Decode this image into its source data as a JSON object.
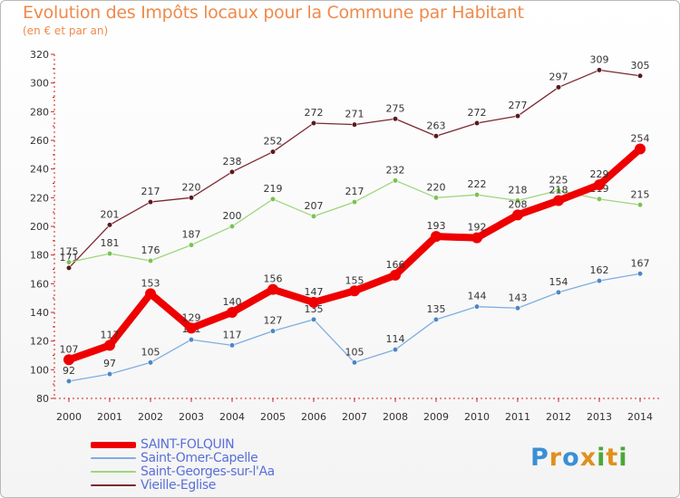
{
  "header": {
    "title": "Evolution des Impôts locaux pour la Commune par Habitant",
    "subtitle": "(en € et par an)"
  },
  "brand": {
    "logo_text": "Proxiti"
  },
  "chart_data": {
    "type": "line",
    "title": "Evolution des Impôts locaux pour la Commune par Habitant",
    "subtitle": "(en € et par an)",
    "xlabel": "",
    "ylabel": "",
    "ylim": [
      80,
      320
    ],
    "y_ticks": [
      80,
      100,
      120,
      140,
      160,
      180,
      200,
      220,
      240,
      260,
      280,
      300,
      320
    ],
    "grid": false,
    "legend_position": "bottom-left",
    "categories": [
      "2000",
      "2001",
      "2002",
      "2003",
      "2004",
      "2005",
      "2006",
      "2007",
      "2008",
      "2009",
      "2010",
      "2011",
      "2012",
      "2013",
      "2014"
    ],
    "series": [
      {
        "name": "Vieille-Eglise",
        "color": "#7b2a33",
        "marker": "#5a1a1a",
        "values": [
          171,
          201,
          217,
          220,
          238,
          252,
          272,
          271,
          275,
          263,
          272,
          277,
          297,
          309,
          305
        ]
      },
      {
        "name": "Saint-Georges-sur-l'Aa",
        "color": "#9ed67c",
        "marker": "#7cc252",
        "values": [
          175,
          181,
          176,
          187,
          200,
          219,
          207,
          217,
          232,
          220,
          222,
          218,
          225,
          219,
          215
        ]
      },
      {
        "name": "Saint-Omer-Capelle",
        "color": "#7faee0",
        "marker": "#4d86c4",
        "values": [
          92,
          97,
          105,
          121,
          117,
          127,
          135,
          105,
          114,
          135,
          144,
          143,
          154,
          162,
          167
        ]
      },
      {
        "name": "SAINT-FOLQUIN",
        "color": "#ee0000",
        "marker": "#ee0000",
        "values": [
          107,
          117,
          153,
          129,
          140,
          156,
          147,
          155,
          166,
          193,
          192,
          208,
          218,
          229,
          254
        ]
      }
    ]
  },
  "legend": {
    "items": [
      {
        "label": "SAINT-FOLQUIN",
        "color": "#ee0000"
      },
      {
        "label": "Saint-Omer-Capelle",
        "color": "#7faee0"
      },
      {
        "label": "Saint-Georges-sur-l'Aa",
        "color": "#9ed67c"
      },
      {
        "label": "Vieille-Eglise",
        "color": "#7b2a33"
      }
    ]
  }
}
